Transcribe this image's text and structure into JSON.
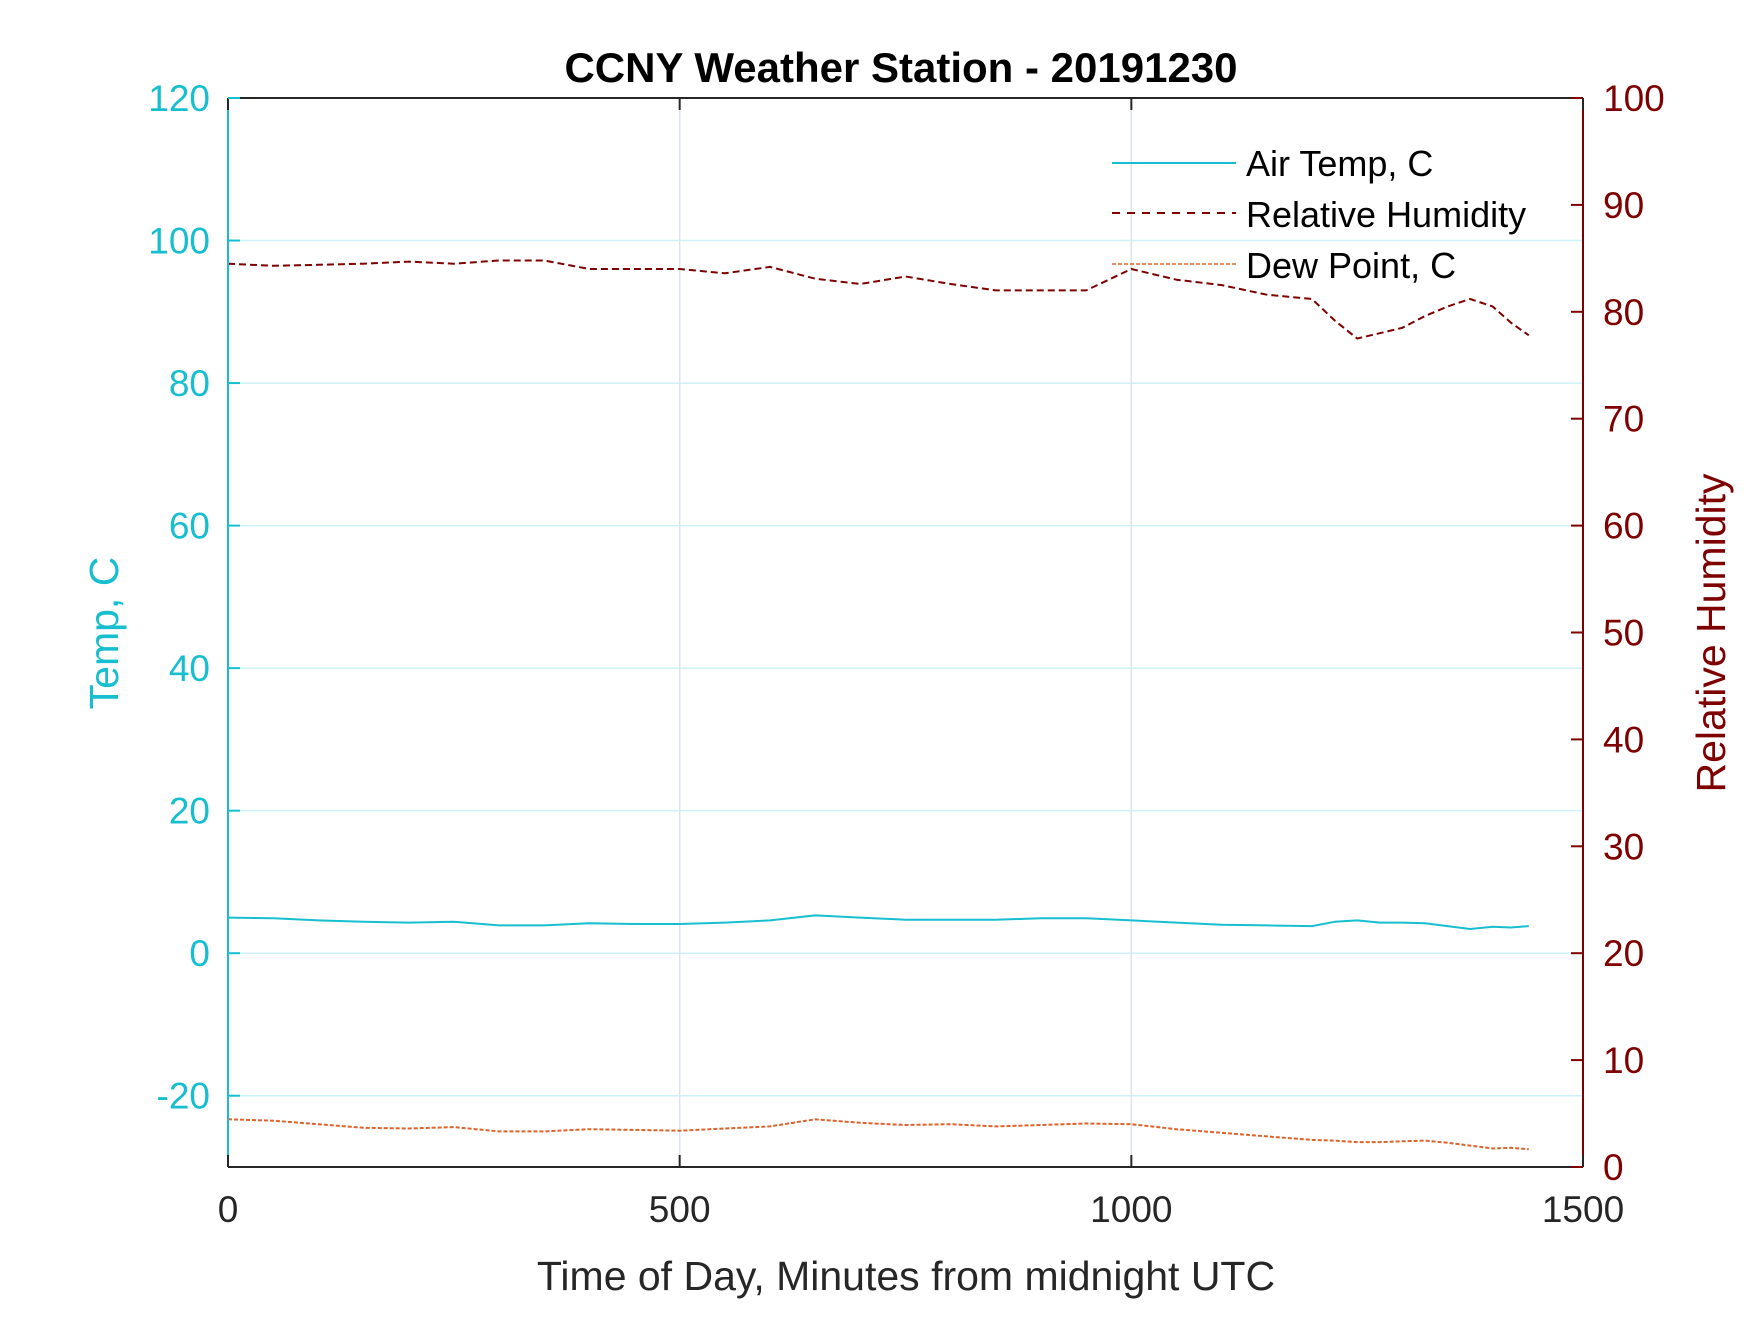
{
  "chart_data": {
    "type": "line",
    "title": "CCNY Weather Station - 20191230",
    "xlabel": "Time of Day, Minutes from midnight UTC",
    "ylabel_left": "Temp, C",
    "ylabel_right": "Relative Humidity",
    "xlim": [
      0,
      1500
    ],
    "ylim_left": [
      -30,
      120
    ],
    "ylim_right": [
      0,
      100
    ],
    "xticks": [
      0,
      500,
      1000,
      1500
    ],
    "yticks_left": [
      -20,
      0,
      20,
      40,
      60,
      80,
      100,
      120
    ],
    "yticks_right": [
      0,
      10,
      20,
      30,
      40,
      50,
      60,
      70,
      80,
      90,
      100
    ],
    "grid": true,
    "legend_position": "top-right",
    "colors": {
      "left_axis": "#17becf",
      "right_axis": "#7f0000",
      "air_temp": "#17becf",
      "humidity": "#7f0000",
      "dew_point": "#e0622b",
      "grid_x": "#dde3ea",
      "grid_y": "#cdf1f7"
    },
    "x": [
      0,
      50,
      100,
      150,
      200,
      250,
      300,
      350,
      400,
      450,
      500,
      550,
      600,
      650,
      700,
      750,
      800,
      850,
      900,
      950,
      1000,
      1050,
      1100,
      1150,
      1200,
      1225,
      1250,
      1275,
      1300,
      1325,
      1350,
      1375,
      1400,
      1420,
      1440
    ],
    "series": [
      {
        "name": "Air Temp, C",
        "axis": "left",
        "style": "solid",
        "values": [
          5.0,
          4.9,
          4.6,
          4.4,
          4.3,
          4.4,
          3.9,
          3.9,
          4.2,
          4.1,
          4.1,
          4.3,
          4.6,
          5.3,
          5.0,
          4.7,
          4.7,
          4.7,
          4.9,
          4.9,
          4.6,
          4.3,
          4.0,
          3.9,
          3.8,
          4.4,
          4.6,
          4.3,
          4.3,
          4.2,
          3.8,
          3.4,
          3.7,
          3.6,
          3.8
        ]
      },
      {
        "name": "Relative Humidity",
        "axis": "right",
        "style": "dashed",
        "values": [
          84.5,
          84.3,
          84.4,
          84.5,
          84.7,
          84.5,
          84.8,
          84.8,
          84.0,
          84.0,
          84.0,
          83.6,
          84.2,
          83.1,
          82.6,
          83.3,
          82.6,
          82.0,
          82.0,
          82.0,
          84.0,
          83.0,
          82.5,
          81.6,
          81.2,
          79.2,
          77.5,
          78.0,
          78.5,
          79.6,
          80.5,
          81.2,
          80.5,
          79.0,
          77.8
        ]
      },
      {
        "name": "Dew Point, C",
        "axis": "left",
        "style": "dashed",
        "values": [
          -23.3,
          -23.5,
          -24.0,
          -24.5,
          -24.6,
          -24.4,
          -25.0,
          -25.0,
          -24.7,
          -24.8,
          -24.9,
          -24.6,
          -24.3,
          -23.3,
          -23.8,
          -24.1,
          -24.0,
          -24.3,
          -24.1,
          -23.9,
          -24.0,
          -24.7,
          -25.2,
          -25.7,
          -26.2,
          -26.3,
          -26.5,
          -26.5,
          -26.4,
          -26.3,
          -26.6,
          -27.0,
          -27.4,
          -27.3,
          -27.5
        ]
      }
    ]
  }
}
